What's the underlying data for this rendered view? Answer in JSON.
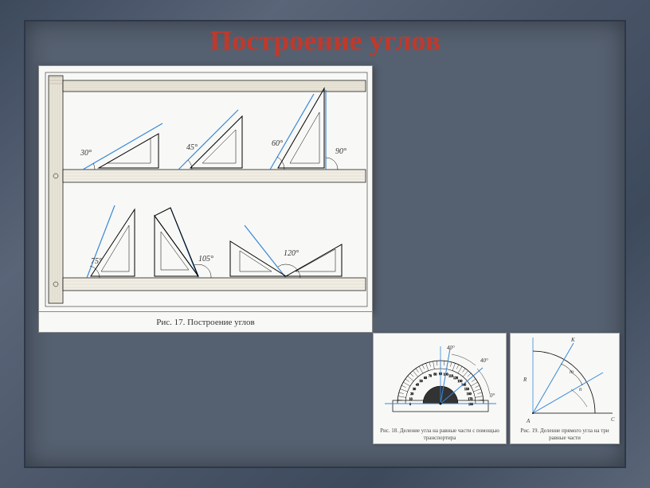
{
  "title": "Построение углов",
  "figure17": {
    "caption": "Рис. 17. Построение углов",
    "angles_top": [
      {
        "label": "30°",
        "value": 30
      },
      {
        "label": "45°",
        "value": 45
      },
      {
        "label": "60°",
        "value": 60
      },
      {
        "label": "90°",
        "value": 90
      }
    ],
    "angles_bottom": [
      {
        "label": "75°",
        "value": 75
      },
      {
        "label": "105°",
        "value": 105
      },
      {
        "label": "120°",
        "value": 120
      }
    ],
    "colors": {
      "triangle_stroke": "#000000",
      "angle_line": "#3888d8",
      "wood_ruler": "#a89878",
      "wood_hatch": "#8a7a5c"
    }
  },
  "figure18": {
    "caption": "Рис. 18. Деление угла на равные части с помощью транспортира",
    "protractor_ticks": {
      "from": 0,
      "to": 180,
      "major_step": 10
    },
    "shown_angles": [
      "0°",
      "40°",
      "40°"
    ],
    "colors": {
      "line": "#3888d8",
      "protractor": "#000000"
    }
  },
  "figure19": {
    "caption": "Рис. 19. Деление прямого угла на три равные части",
    "points": [
      "A",
      "C",
      "K"
    ],
    "labels": [
      "R",
      "m",
      "n"
    ],
    "colors": {
      "construction": "#000000",
      "result": "#3888d8"
    }
  },
  "style": {
    "background": "#556070",
    "frame": "#3d4a5c",
    "title_color": "#c0392b",
    "paper": "#f8f8f6"
  }
}
